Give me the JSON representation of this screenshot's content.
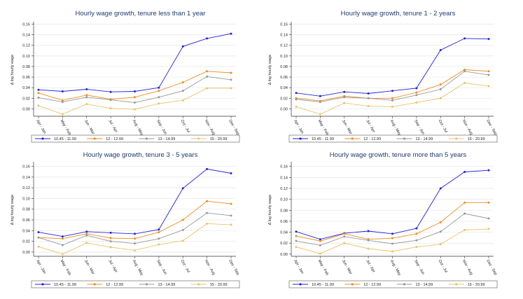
{
  "figure": {
    "ylabel": "Δ log hourly wage",
    "categories": [
      "Apr - Jan",
      "May - Feb",
      "Jun - Mar",
      "Jul - Apr",
      "Aug - May",
      "Sep - Jun",
      "Oct - Jul",
      "Nov - Aug",
      "Dec - Sep"
    ],
    "legend_names": [
      "10.45 - 11.99",
      "12 - 12.99",
      "13 - 14.99",
      "15 - 20.99"
    ],
    "colors": [
      "#2222dd",
      "#f08c1e",
      "#999999",
      "#e8c46a"
    ]
  },
  "chart_data": [
    {
      "type": "line",
      "title": "Hourly wage growth, tenure less than 1 year",
      "xlabel": "",
      "ylabel": "Δ log hourly wage",
      "categories": [
        "Apr - Jan",
        "May - Feb",
        "Jun - Mar",
        "Jul - Apr",
        "Aug - May",
        "Sep - Jun",
        "Oct - Jul",
        "Nov - Aug",
        "Dec - Sep"
      ],
      "yticks": [
        "0.00",
        "0.02",
        "0.04",
        "0.06",
        "0.08",
        "0.10",
        "0.12",
        "0.14",
        "0.16"
      ],
      "ylim": [
        -0.014,
        0.162
      ],
      "series": [
        {
          "name": "10.45 - 11.99",
          "values": [
            0.036,
            0.033,
            0.037,
            0.032,
            0.033,
            0.04,
            0.118,
            0.133,
            0.142
          ]
        },
        {
          "name": "12 - 12.99",
          "values": [
            0.03,
            0.016,
            0.026,
            0.018,
            0.022,
            0.034,
            0.05,
            0.071,
            0.068
          ]
        },
        {
          "name": "13 - 14.99",
          "values": [
            0.021,
            0.013,
            0.022,
            0.017,
            0.012,
            0.022,
            0.034,
            0.061,
            0.055
          ]
        },
        {
          "name": "15 - 20.99",
          "values": [
            0.006,
            -0.01,
            0.009,
            0.001,
            -0.001,
            0.01,
            0.016,
            0.039,
            0.039
          ]
        }
      ]
    },
    {
      "type": "line",
      "title": "Hourly wage growth, tenure 1 - 2 years",
      "xlabel": "",
      "ylabel": "Δ log hourly wage",
      "categories": [
        "Apr - Jan",
        "May - Feb",
        "Jun - Mar",
        "Jul - Apr",
        "Aug - May",
        "Sep - Jun",
        "Oct - Jul",
        "Nov - Aug",
        "Dec - Sep"
      ],
      "yticks": [
        "0.00",
        "0.02",
        "0.04",
        "0.06",
        "0.08",
        "0.10",
        "0.12",
        "0.14",
        "0.16"
      ],
      "ylim": [
        -0.014,
        0.162
      ],
      "series": [
        {
          "name": "10.45 - 11.99",
          "values": [
            0.03,
            0.024,
            0.032,
            0.029,
            0.034,
            0.039,
            0.111,
            0.133,
            0.132
          ]
        },
        {
          "name": "12 - 12.99",
          "values": [
            0.02,
            0.015,
            0.024,
            0.02,
            0.02,
            0.031,
            0.046,
            0.074,
            0.071
          ]
        },
        {
          "name": "13 - 14.99",
          "values": [
            0.018,
            0.013,
            0.022,
            0.02,
            0.016,
            0.026,
            0.037,
            0.071,
            0.064
          ]
        },
        {
          "name": "15 - 20.99",
          "values": [
            0.004,
            -0.01,
            0.011,
            0.005,
            0.004,
            0.012,
            0.02,
            0.049,
            0.043
          ]
        }
      ]
    },
    {
      "type": "line",
      "title": "Hourly wage growth, tenure 3 - 5 years",
      "xlabel": "",
      "ylabel": "Δ log hourly wage",
      "categories": [
        "Apr - Jan",
        "May - Feb",
        "Jun - Mar",
        "Jul - Apr",
        "Aug - May",
        "Sep - Jun",
        "Oct - Jul",
        "Nov - Aug",
        "Dec - Sep"
      ],
      "yticks": [
        "0.00",
        "0.02",
        "0.04",
        "0.06",
        "0.08",
        "0.10",
        "0.12",
        "0.14",
        "0.16"
      ],
      "ylim": [
        -0.008,
        0.166
      ],
      "series": [
        {
          "name": "10.45 - 11.99",
          "values": [
            0.037,
            0.029,
            0.038,
            0.036,
            0.034,
            0.042,
            0.119,
            0.155,
            0.147
          ]
        },
        {
          "name": "12 - 12.99",
          "values": [
            0.027,
            0.025,
            0.034,
            0.026,
            0.025,
            0.037,
            0.06,
            0.095,
            0.09
          ]
        },
        {
          "name": "13 - 14.99",
          "values": [
            0.027,
            0.013,
            0.031,
            0.02,
            0.016,
            0.025,
            0.041,
            0.073,
            0.068
          ]
        },
        {
          "name": "15 - 20.99",
          "values": [
            0.01,
            -0.004,
            0.017,
            0.009,
            0.003,
            0.014,
            0.021,
            0.053,
            0.051
          ]
        }
      ]
    },
    {
      "type": "line",
      "title": "Hourly wage growth, tenure more than 5 years",
      "xlabel": "",
      "ylabel": "Δ log hourly wage",
      "categories": [
        "Apr - Jan",
        "May - Feb",
        "Jun - Mar",
        "Jul - Apr",
        "Aug - May",
        "Sep - Jun",
        "Oct - Jul",
        "Nov - Aug",
        "Dec - Sep"
      ],
      "yticks": [
        "0.00",
        "0.02",
        "0.04",
        "0.06",
        "0.08",
        "0.10",
        "0.12",
        "0.14",
        "0.16"
      ],
      "ylim": [
        -0.004,
        0.166
      ],
      "series": [
        {
          "name": "10.45 - 11.99",
          "values": [
            0.041,
            0.027,
            0.038,
            0.042,
            0.037,
            0.047,
            0.12,
            0.15,
            0.153
          ]
        },
        {
          "name": "12 - 12.99",
          "values": [
            0.033,
            0.024,
            0.037,
            0.027,
            0.029,
            0.037,
            0.058,
            0.094,
            0.094
          ]
        },
        {
          "name": "13 - 14.99",
          "values": [
            0.024,
            0.016,
            0.032,
            0.025,
            0.019,
            0.025,
            0.041,
            0.074,
            0.065
          ]
        },
        {
          "name": "15 - 20.99",
          "values": [
            0.013,
            0.001,
            0.02,
            0.01,
            0.005,
            0.013,
            0.018,
            0.044,
            0.046
          ]
        }
      ]
    }
  ]
}
